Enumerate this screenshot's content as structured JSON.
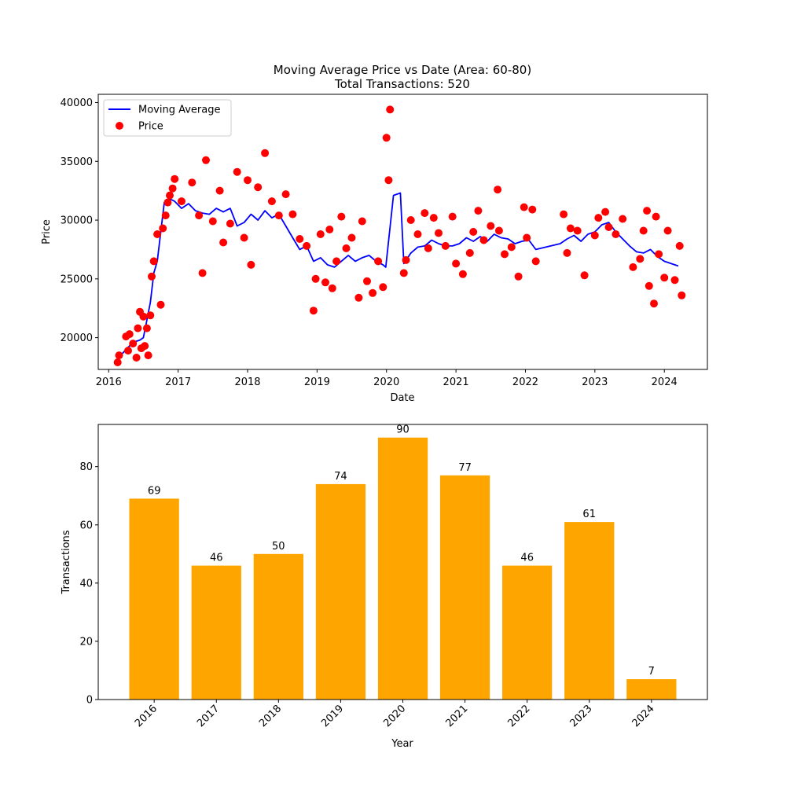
{
  "chart_data": [
    {
      "type": "line+scatter",
      "title": "Moving Average Price vs Date (Area: 60-80)",
      "subtitle": "Total Transactions: 520",
      "xlabel": "Date",
      "ylabel": "Price",
      "xlim": [
        2015.85,
        2024.62
      ],
      "ylim": [
        17300,
        40700
      ],
      "xticks": [
        2016,
        2017,
        2018,
        2019,
        2020,
        2021,
        2022,
        2023,
        2024
      ],
      "xtick_labels": [
        "2016",
        "2017",
        "2018",
        "2019",
        "2020",
        "2021",
        "2022",
        "2023",
        "2024"
      ],
      "yticks": [
        20000,
        25000,
        30000,
        35000,
        40000
      ],
      "ytick_labels": [
        "20000",
        "25000",
        "30000",
        "35000",
        "40000"
      ],
      "legend": {
        "position": "upper-left",
        "entries": [
          "Moving Average",
          "Price"
        ]
      },
      "colors": {
        "line": "#0000ff",
        "points": "#ff0000"
      },
      "series": [
        {
          "name": "Moving Average",
          "kind": "line",
          "x": [
            2016.1,
            2016.25,
            2016.35,
            2016.45,
            2016.5,
            2016.55,
            2016.6,
            2016.65,
            2016.7,
            2016.8,
            2016.88,
            2016.95,
            2017.05,
            2017.15,
            2017.25,
            2017.35,
            2017.45,
            2017.55,
            2017.65,
            2017.75,
            2017.85,
            2017.95,
            2018.05,
            2018.15,
            2018.25,
            2018.35,
            2018.45,
            2018.55,
            2018.65,
            2018.75,
            2018.85,
            2018.95,
            2019.05,
            2019.15,
            2019.25,
            2019.35,
            2019.45,
            2019.55,
            2019.65,
            2019.75,
            2019.85,
            2019.95,
            2019.99,
            2020.1,
            2020.2,
            2020.25,
            2020.35,
            2020.45,
            2020.55,
            2020.65,
            2020.75,
            2020.85,
            2020.95,
            2021.05,
            2021.15,
            2021.25,
            2021.35,
            2021.45,
            2021.55,
            2021.65,
            2021.75,
            2021.85,
            2021.95,
            2022.05,
            2022.15,
            2022.5,
            2022.6,
            2022.7,
            2022.8,
            2022.9,
            2023.0,
            2023.1,
            2023.2,
            2023.3,
            2023.4,
            2023.5,
            2023.6,
            2023.7,
            2023.8,
            2023.9,
            2024.0,
            2024.1,
            2024.2
          ],
          "y": [
            18000,
            19000,
            19600,
            19800,
            20000,
            21500,
            23000,
            25500,
            26500,
            31500,
            31800,
            31600,
            31000,
            31400,
            30800,
            30600,
            30500,
            31000,
            30700,
            31000,
            29500,
            29800,
            30500,
            30000,
            30800,
            30200,
            30500,
            29500,
            28500,
            27500,
            27800,
            26500,
            26800,
            26200,
            26000,
            26500,
            27000,
            26500,
            26800,
            27000,
            26500,
            26200,
            26000,
            32100,
            32300,
            26300,
            27200,
            27700,
            27800,
            28300,
            28000,
            27800,
            27800,
            28000,
            28500,
            28200,
            28600,
            28200,
            28800,
            28500,
            28400,
            28000,
            28200,
            28300,
            27500,
            28000,
            28400,
            28700,
            28200,
            28800,
            29000,
            29600,
            29800,
            29000,
            28400,
            27800,
            27300,
            27200,
            27500,
            26900,
            26500,
            26300,
            26100
          ]
        },
        {
          "name": "Price",
          "kind": "scatter",
          "x": [
            2016.13,
            2016.15,
            2016.25,
            2016.28,
            2016.3,
            2016.35,
            2016.4,
            2016.42,
            2016.45,
            2016.47,
            2016.5,
            2016.52,
            2016.55,
            2016.57,
            2016.6,
            2016.62,
            2016.65,
            2016.7,
            2016.75,
            2016.78,
            2016.82,
            2016.85,
            2016.88,
            2016.92,
            2016.95,
            2017.05,
            2017.2,
            2017.3,
            2017.35,
            2017.4,
            2017.5,
            2017.6,
            2017.65,
            2017.75,
            2017.85,
            2017.95,
            2018.0,
            2018.05,
            2018.15,
            2018.25,
            2018.35,
            2018.45,
            2018.55,
            2018.65,
            2018.75,
            2018.85,
            2018.95,
            2018.98,
            2019.05,
            2019.12,
            2019.18,
            2019.22,
            2019.28,
            2019.35,
            2019.42,
            2019.5,
            2019.6,
            2019.65,
            2019.72,
            2019.8,
            2019.88,
            2019.95,
            2020.0,
            2020.03,
            2020.05,
            2020.25,
            2020.28,
            2020.35,
            2020.45,
            2020.55,
            2020.6,
            2020.68,
            2020.75,
            2020.85,
            2020.95,
            2021.0,
            2021.1,
            2021.2,
            2021.25,
            2021.32,
            2021.4,
            2021.5,
            2021.6,
            2021.62,
            2021.7,
            2021.8,
            2021.9,
            2021.98,
            2022.02,
            2022.1,
            2022.15,
            2022.55,
            2022.6,
            2022.65,
            2022.75,
            2022.85,
            2023.0,
            2023.05,
            2023.15,
            2023.2,
            2023.3,
            2023.4,
            2023.55,
            2023.65,
            2023.7,
            2023.75,
            2023.78,
            2023.85,
            2023.88,
            2023.92,
            2024.0,
            2024.05,
            2024.15,
            2024.22,
            2024.25
          ],
          "y": [
            17900,
            18500,
            20100,
            18900,
            20300,
            19500,
            18300,
            20800,
            22200,
            19100,
            21800,
            19300,
            20800,
            18500,
            21900,
            25200,
            26500,
            28800,
            22800,
            29300,
            30400,
            31500,
            32100,
            32700,
            33500,
            31600,
            33200,
            30400,
            25500,
            35100,
            29900,
            32500,
            28100,
            29700,
            34100,
            28500,
            33400,
            26200,
            32800,
            35700,
            31600,
            30400,
            32200,
            30500,
            28400,
            27800,
            22300,
            25000,
            28800,
            24700,
            29200,
            24200,
            26500,
            30300,
            27600,
            28500,
            23400,
            29900,
            24800,
            23800,
            26500,
            24300,
            37000,
            33400,
            39400,
            25500,
            26600,
            30000,
            28800,
            30600,
            27600,
            30200,
            28900,
            27800,
            30300,
            26300,
            25400,
            27200,
            29000,
            30800,
            28300,
            29500,
            32600,
            29100,
            27100,
            27700,
            25200,
            31100,
            28500,
            30900,
            26500,
            30500,
            27200,
            29300,
            29100,
            25300,
            28700,
            30200,
            30700,
            29400,
            28800,
            30100,
            26000,
            26700,
            29100,
            30800,
            24400,
            22900,
            30300,
            27100,
            25100,
            29100,
            24900,
            27800,
            23600
          ]
        }
      ]
    },
    {
      "type": "bar",
      "title": "",
      "xlabel": "Year",
      "ylabel": "Transactions",
      "categories": [
        "2016",
        "2017",
        "2018",
        "2019",
        "2020",
        "2021",
        "2022",
        "2023",
        "2024"
      ],
      "values": [
        69,
        46,
        50,
        74,
        90,
        77,
        46,
        61,
        7
      ],
      "value_labels": [
        "69",
        "46",
        "50",
        "74",
        "90",
        "77",
        "46",
        "61",
        "7"
      ],
      "ylim": [
        0,
        94.5
      ],
      "yticks": [
        0,
        20,
        40,
        60,
        80
      ],
      "ytick_labels": [
        "0",
        "20",
        "40",
        "60",
        "80"
      ],
      "colors": {
        "bar": "#ffa500"
      }
    }
  ]
}
